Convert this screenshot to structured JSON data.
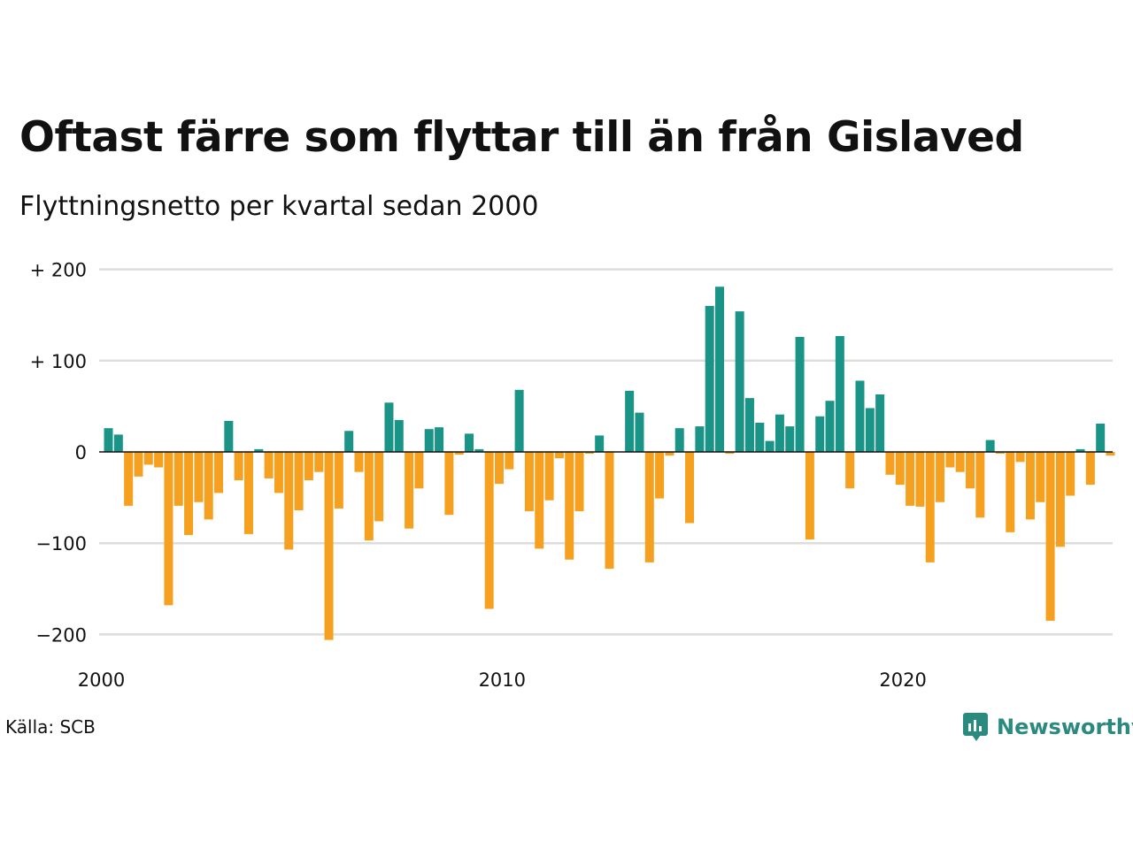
{
  "header": {
    "title": "Oftast färre som flyttar till än från Gislaved",
    "subtitle": "Flyttningsnetto per kvartal sedan 2000"
  },
  "footer": {
    "source": "Källa: SCB",
    "brand": "Newsworthy"
  },
  "colors": {
    "positive": "#1a9486",
    "negative": "#f5a01e",
    "grid": "#dddddd",
    "brand": "#2a8a7e"
  },
  "icons": {
    "brand_logo": "newsworthy-chart-bubble-icon"
  },
  "chart_data": {
    "type": "bar",
    "title": "Oftast färre som flyttar till än från Gislaved",
    "subtitle": "Flyttningsnetto per kvartal sedan 2000",
    "x_start": "2000 Q1",
    "x_ticks": [
      "2000",
      "2010",
      "2020"
    ],
    "y_ticks": [
      {
        "value": 200,
        "label": "+ 200"
      },
      {
        "value": 100,
        "label": "+ 100"
      },
      {
        "value": 0,
        "label": "0"
      },
      {
        "value": -100,
        "label": "−100"
      },
      {
        "value": -200,
        "label": "−200"
      }
    ],
    "ylim": [
      -220,
      220
    ],
    "grid": true,
    "categories": [
      "2000 Q1",
      "2000 Q2",
      "2000 Q3",
      "2000 Q4",
      "2001 Q1",
      "2001 Q2",
      "2001 Q3",
      "2001 Q4",
      "2002 Q1",
      "2002 Q2",
      "2002 Q3",
      "2002 Q4",
      "2003 Q1",
      "2003 Q2",
      "2003 Q3",
      "2003 Q4",
      "2004 Q1",
      "2004 Q2",
      "2004 Q3",
      "2004 Q4",
      "2005 Q1",
      "2005 Q2",
      "2005 Q3",
      "2005 Q4",
      "2006 Q1",
      "2006 Q2",
      "2006 Q3",
      "2006 Q4",
      "2007 Q1",
      "2007 Q2",
      "2007 Q3",
      "2007 Q4",
      "2008 Q1",
      "2008 Q2",
      "2008 Q3",
      "2008 Q4",
      "2009 Q1",
      "2009 Q2",
      "2009 Q3",
      "2009 Q4",
      "2010 Q1",
      "2010 Q2",
      "2010 Q3",
      "2010 Q4",
      "2011 Q1",
      "2011 Q2",
      "2011 Q3",
      "2011 Q4",
      "2012 Q1",
      "2012 Q2",
      "2012 Q3",
      "2012 Q4",
      "2013 Q1",
      "2013 Q2",
      "2013 Q3",
      "2013 Q4",
      "2014 Q1",
      "2014 Q2",
      "2014 Q3",
      "2014 Q4",
      "2015 Q1",
      "2015 Q2",
      "2015 Q3",
      "2015 Q4",
      "2016 Q1",
      "2016 Q2",
      "2016 Q3",
      "2016 Q4",
      "2017 Q1",
      "2017 Q2",
      "2017 Q3",
      "2017 Q4",
      "2018 Q1",
      "2018 Q2",
      "2018 Q3",
      "2018 Q4",
      "2019 Q1",
      "2019 Q2",
      "2019 Q3",
      "2019 Q4",
      "2020 Q1",
      "2020 Q2",
      "2020 Q3",
      "2020 Q4",
      "2021 Q1",
      "2021 Q2",
      "2021 Q3",
      "2021 Q4",
      "2022 Q1",
      "2022 Q2",
      "2022 Q3",
      "2022 Q4",
      "2023 Q1",
      "2023 Q2",
      "2023 Q3",
      "2023 Q4",
      "2024 Q1",
      "2024 Q2",
      "2024 Q3",
      "2024 Q4",
      "2025 Q1"
    ],
    "values": [
      26,
      19,
      -59,
      -27,
      -14,
      -17,
      -168,
      -59,
      -91,
      -55,
      -74,
      -45,
      34,
      -31,
      -90,
      3,
      -29,
      -45,
      -107,
      -64,
      -31,
      -22,
      -206,
      -62,
      23,
      -22,
      -97,
      -76,
      54,
      35,
      -84,
      -40,
      25,
      27,
      -69,
      -3,
      20,
      3,
      -172,
      -35,
      -19,
      68,
      -65,
      -106,
      -53,
      -7,
      -118,
      -65,
      -2,
      18,
      -128,
      0,
      67,
      43,
      -121,
      -51,
      -4,
      26,
      -78,
      28,
      160,
      181,
      -2,
      154,
      59,
      32,
      12,
      41,
      28,
      126,
      -96,
      39,
      56,
      127,
      -40,
      78,
      48,
      63,
      -25,
      -36,
      -59,
      -60,
      -121,
      -55,
      -17,
      -22,
      -40,
      -72,
      13,
      -2,
      -88,
      -11,
      -74,
      -55,
      -185,
      -104,
      -48,
      3,
      -36,
      31,
      -4
    ]
  }
}
